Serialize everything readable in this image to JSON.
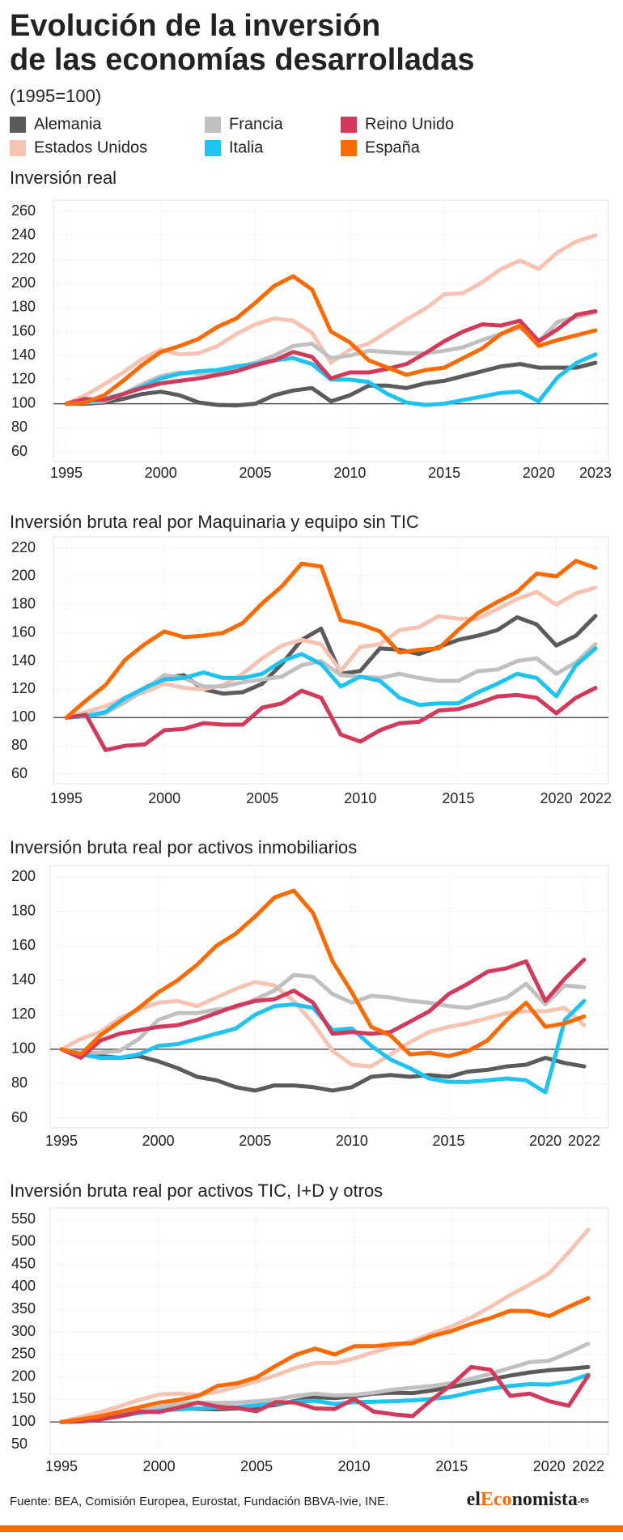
{
  "header": {
    "title": [
      "Evolución de la inversión",
      "de las economías desarrolladas"
    ],
    "subtitle": "(1995=100)"
  },
  "footer": {
    "source": "Fuente: BEA, Comisión Europea, Eurostat, Fundación BBVA-Ivie, INE.",
    "logo": [
      "el",
      "Eco",
      "nomista",
      ".es"
    ]
  },
  "chart_data": [
    {
      "type": "line",
      "title": "Inversión real",
      "x": [
        1995,
        1996,
        1997,
        1998,
        1999,
        2000,
        2001,
        2002,
        2003,
        2004,
        2005,
        2006,
        2007,
        2008,
        2009,
        2010,
        2011,
        2012,
        2013,
        2014,
        2015,
        2016,
        2017,
        2018,
        2019,
        2020,
        2021,
        2022,
        2023
      ],
      "xlim": [
        1995,
        2023
      ],
      "xticks": [
        1995,
        2000,
        2005,
        2010,
        2015,
        2020,
        2023
      ],
      "ylim": [
        60,
        260
      ],
      "yticks": [
        60,
        80,
        100,
        120,
        140,
        160,
        180,
        200,
        220,
        240,
        260
      ],
      "reference_line": 100,
      "grid": true,
      "series": [
        {
          "name": "Alemania",
          "color": "#5b5b5b",
          "values": [
            100,
            100,
            101,
            104,
            108,
            110,
            107,
            101,
            99,
            98.5,
            100,
            107,
            111,
            113,
            102,
            107,
            115,
            115,
            113,
            117,
            119,
            123,
            127,
            131,
            133,
            130,
            130,
            130,
            134
          ]
        },
        {
          "name": "Estados Unidos",
          "color": "#f6c3b3",
          "values": [
            100,
            107,
            116,
            126,
            137,
            145,
            141,
            142,
            148,
            158,
            166,
            171,
            169,
            159,
            134,
            145,
            150,
            160,
            170,
            179,
            191,
            192,
            201,
            212,
            219,
            212,
            226,
            235,
            240
          ]
        },
        {
          "name": "Francia",
          "color": "#c0c0c0",
          "values": [
            100,
            101,
            102,
            108,
            116,
            123,
            126,
            125,
            127,
            130,
            134,
            140,
            148,
            150,
            138,
            140,
            144,
            143,
            142,
            142,
            144,
            147,
            153,
            158,
            163,
            152,
            168,
            172,
            176
          ]
        },
        {
          "name": "Italia",
          "color": "#1ec3f2",
          "values": [
            100,
            101,
            104,
            108,
            114,
            121,
            125,
            127,
            128,
            131,
            133,
            136,
            138,
            133,
            120,
            120,
            118,
            108,
            101,
            99,
            100,
            103,
            106,
            109,
            110,
            102,
            122,
            134,
            141
          ]
        },
        {
          "name": "Reino Unido",
          "color": "#d2395a",
          "values": [
            100,
            104,
            103,
            108,
            113,
            117,
            119,
            121,
            124,
            127,
            132,
            136,
            143,
            139,
            121,
            126,
            126,
            129,
            133,
            142,
            152,
            160,
            166,
            165,
            169,
            152,
            162,
            174,
            177
          ]
        },
        {
          "name": "España",
          "color": "#ff6a00",
          "values": [
            100,
            101,
            107,
            119,
            132,
            143,
            148,
            154,
            164,
            171,
            184,
            198,
            206,
            195,
            160,
            151,
            136,
            130,
            124,
            128,
            130,
            138,
            146,
            158,
            165,
            148,
            153,
            157,
            161
          ]
        }
      ]
    },
    {
      "type": "line",
      "title": "Inversión bruta real por Maquinaria y equipo sin TIC",
      "x": [
        1995,
        1996,
        1997,
        1998,
        1999,
        2000,
        2001,
        2002,
        2003,
        2004,
        2005,
        2006,
        2007,
        2008,
        2009,
        2010,
        2011,
        2012,
        2013,
        2014,
        2015,
        2016,
        2017,
        2018,
        2019,
        2020,
        2021,
        2022
      ],
      "xlim": [
        1995,
        2022
      ],
      "xticks": [
        1995,
        2000,
        2005,
        2010,
        2015,
        2020,
        2022
      ],
      "ylim": [
        60,
        220
      ],
      "yticks": [
        60,
        80,
        100,
        120,
        140,
        160,
        180,
        200,
        220
      ],
      "reference_line": 100,
      "grid": true,
      "series": [
        {
          "name": "Alemania",
          "color": "#5b5b5b",
          "values": [
            100,
            101,
            103,
            113,
            121,
            128,
            130,
            120,
            117,
            118,
            124,
            138,
            155,
            163,
            131,
            133,
            149,
            148,
            145,
            150,
            155,
            158,
            162,
            171,
            166,
            151,
            158,
            172
          ]
        },
        {
          "name": "Estados Unidos",
          "color": "#f6c3b3",
          "values": [
            100,
            104,
            108,
            114,
            118,
            124,
            121,
            120,
            123,
            131,
            142,
            151,
            155,
            152,
            133,
            150,
            152,
            162,
            164,
            172,
            170,
            170,
            177,
            184,
            189,
            180,
            188,
            192
          ]
        },
        {
          "name": "Francia",
          "color": "#c0c0c0",
          "values": [
            100,
            101,
            103,
            111,
            120,
            130,
            128,
            122,
            122,
            125,
            127,
            129,
            137,
            140,
            130,
            129,
            128,
            131,
            128,
            126,
            126,
            133,
            134,
            140,
            142,
            131,
            139,
            152
          ]
        },
        {
          "name": "Italia",
          "color": "#1ec3f2",
          "values": [
            100,
            101,
            104,
            114,
            121,
            127,
            128,
            132,
            128,
            128,
            131,
            140,
            145,
            138,
            122,
            129,
            126,
            114,
            109,
            110,
            110,
            118,
            124,
            131,
            128,
            115,
            137,
            149
          ]
        },
        {
          "name": "Reino Unido",
          "color": "#d2395a",
          "values": [
            100,
            102,
            77,
            80,
            81,
            91,
            92,
            96,
            95,
            95,
            107,
            110,
            119,
            114,
            88,
            83,
            91,
            96,
            97,
            105,
            106,
            110,
            115,
            116,
            114,
            103,
            114,
            121
          ]
        },
        {
          "name": "España",
          "color": "#ff6a00",
          "values": [
            100,
            112,
            123,
            141,
            152,
            161,
            157,
            158,
            160,
            167,
            181,
            193,
            209,
            207,
            169,
            166,
            161,
            146,
            148,
            149,
            162,
            174,
            182,
            189,
            202,
            200,
            211,
            206
          ]
        }
      ]
    },
    {
      "type": "line",
      "title": "Inversión bruta real por activos inmobiliarios",
      "x": [
        1995,
        1996,
        1997,
        1998,
        1999,
        2000,
        2001,
        2002,
        2003,
        2004,
        2005,
        2006,
        2007,
        2008,
        2009,
        2010,
        2011,
        2012,
        2013,
        2014,
        2015,
        2016,
        2017,
        2018,
        2019,
        2020,
        2021,
        2022
      ],
      "xlim": [
        1995,
        2022
      ],
      "xticks": [
        1995,
        2000,
        2005,
        2010,
        2015,
        2020,
        2022
      ],
      "ylim": [
        60,
        200
      ],
      "yticks": [
        60,
        80,
        100,
        120,
        140,
        160,
        180,
        200
      ],
      "reference_line": 100,
      "grid": true,
      "series": [
        {
          "name": "Alemania",
          "color": "#5b5b5b",
          "values": [
            100,
            97,
            96,
            95,
            96,
            93,
            89,
            84,
            82,
            78,
            76,
            79,
            79,
            78,
            76,
            78,
            84,
            85,
            84,
            85,
            84,
            87,
            88,
            90,
            91,
            95,
            92,
            90
          ]
        },
        {
          "name": "Estados Unidos",
          "color": "#f6c3b3",
          "values": [
            100,
            106,
            110,
            118,
            123,
            127,
            128,
            125,
            130,
            135,
            139,
            137,
            128,
            115,
            99,
            91,
            90,
            97,
            104,
            110,
            113,
            115,
            118,
            121,
            122,
            122,
            124,
            114
          ]
        },
        {
          "name": "Francia",
          "color": "#c0c0c0",
          "values": [
            100,
            98,
            98,
            99,
            106,
            117,
            121,
            121,
            123,
            124,
            129,
            134,
            143,
            142,
            132,
            127,
            131,
            130,
            128,
            127,
            125,
            124,
            127,
            130,
            138,
            126,
            137,
            136
          ]
        },
        {
          "name": "Italia",
          "color": "#1ec3f2",
          "values": [
            100,
            97,
            95,
            95,
            97,
            102,
            103,
            106,
            109,
            112,
            120,
            125,
            126,
            124,
            111,
            112,
            102,
            94,
            89,
            83,
            81,
            81,
            82,
            83,
            82,
            75,
            117,
            128
          ]
        },
        {
          "name": "Reino Unido",
          "color": "#d2395a",
          "values": [
            100,
            95,
            105,
            109,
            111,
            113,
            114,
            117,
            121,
            125,
            128,
            129,
            134,
            127,
            109,
            110,
            109,
            110,
            116,
            122,
            132,
            138,
            145,
            147,
            151,
            128,
            141,
            152
          ]
        },
        {
          "name": "España",
          "color": "#ff6a00",
          "values": [
            100,
            97,
            108,
            116,
            124,
            133,
            140,
            149,
            160,
            167,
            177,
            188,
            192,
            179,
            151,
            133,
            113,
            108,
            97,
            98,
            96,
            99,
            105,
            117,
            127,
            113,
            115,
            119
          ]
        }
      ]
    },
    {
      "type": "line",
      "title": "Inversión bruta real por activos TIC, I+D y otros",
      "x": [
        1995,
        1996,
        1997,
        1998,
        1999,
        2000,
        2001,
        2002,
        2003,
        2004,
        2005,
        2006,
        2007,
        2008,
        2009,
        2010,
        2011,
        2012,
        2013,
        2014,
        2015,
        2016,
        2017,
        2018,
        2019,
        2020,
        2021,
        2022
      ],
      "xlim": [
        1995,
        2022
      ],
      "xticks": [
        1995,
        2000,
        2005,
        2010,
        2015,
        2020,
        2022
      ],
      "ylim": [
        50,
        550
      ],
      "yticks": [
        50,
        100,
        150,
        200,
        250,
        300,
        350,
        400,
        450,
        500,
        550
      ],
      "reference_line": 100,
      "grid": true,
      "series": [
        {
          "name": "Alemania",
          "color": "#5b5b5b",
          "values": [
            100,
            103,
            107,
            113,
            121,
            129,
            131,
            129,
            128,
            130,
            133,
            138,
            147,
            155,
            153,
            157,
            163,
            165,
            164,
            170,
            178,
            186,
            195,
            203,
            210,
            215,
            218,
            222
          ]
        },
        {
          "name": "Estados Unidos",
          "color": "#f6c3b3",
          "values": [
            100,
            111,
            122,
            135,
            149,
            161,
            163,
            160,
            167,
            178,
            190,
            204,
            220,
            231,
            231,
            241,
            255,
            268,
            280,
            297,
            312,
            332,
            356,
            382,
            405,
            430,
            477,
            527
          ]
        },
        {
          "name": "Francia",
          "color": "#c0c0c0",
          "values": [
            100,
            103,
            107,
            115,
            124,
            133,
            140,
            143,
            142,
            143,
            146,
            150,
            158,
            163,
            159,
            160,
            165,
            172,
            176,
            180,
            186,
            196,
            207,
            220,
            233,
            236,
            254,
            274
          ]
        },
        {
          "name": "Italia",
          "color": "#1ec3f2",
          "values": [
            100,
            104,
            109,
            116,
            120,
            125,
            128,
            130,
            132,
            133,
            137,
            141,
            145,
            147,
            140,
            144,
            145,
            146,
            148,
            151,
            156,
            166,
            174,
            180,
            184,
            183,
            190,
            205
          ]
        },
        {
          "name": "Reino Unido",
          "color": "#d2395a",
          "values": [
            100,
            101,
            106,
            113,
            123,
            122,
            132,
            143,
            134,
            131,
            124,
            144,
            143,
            130,
            129,
            151,
            123,
            117,
            113,
            150,
            183,
            222,
            216,
            158,
            163,
            146,
            136,
            203
          ]
        },
        {
          "name": "España",
          "color": "#ff6a00",
          "values": [
            100,
            106,
            113,
            123,
            133,
            143,
            149,
            158,
            180,
            186,
            199,
            225,
            249,
            263,
            250,
            268,
            268,
            273,
            275,
            291,
            302,
            318,
            331,
            347,
            346,
            335,
            356,
            375
          ]
        }
      ]
    }
  ]
}
